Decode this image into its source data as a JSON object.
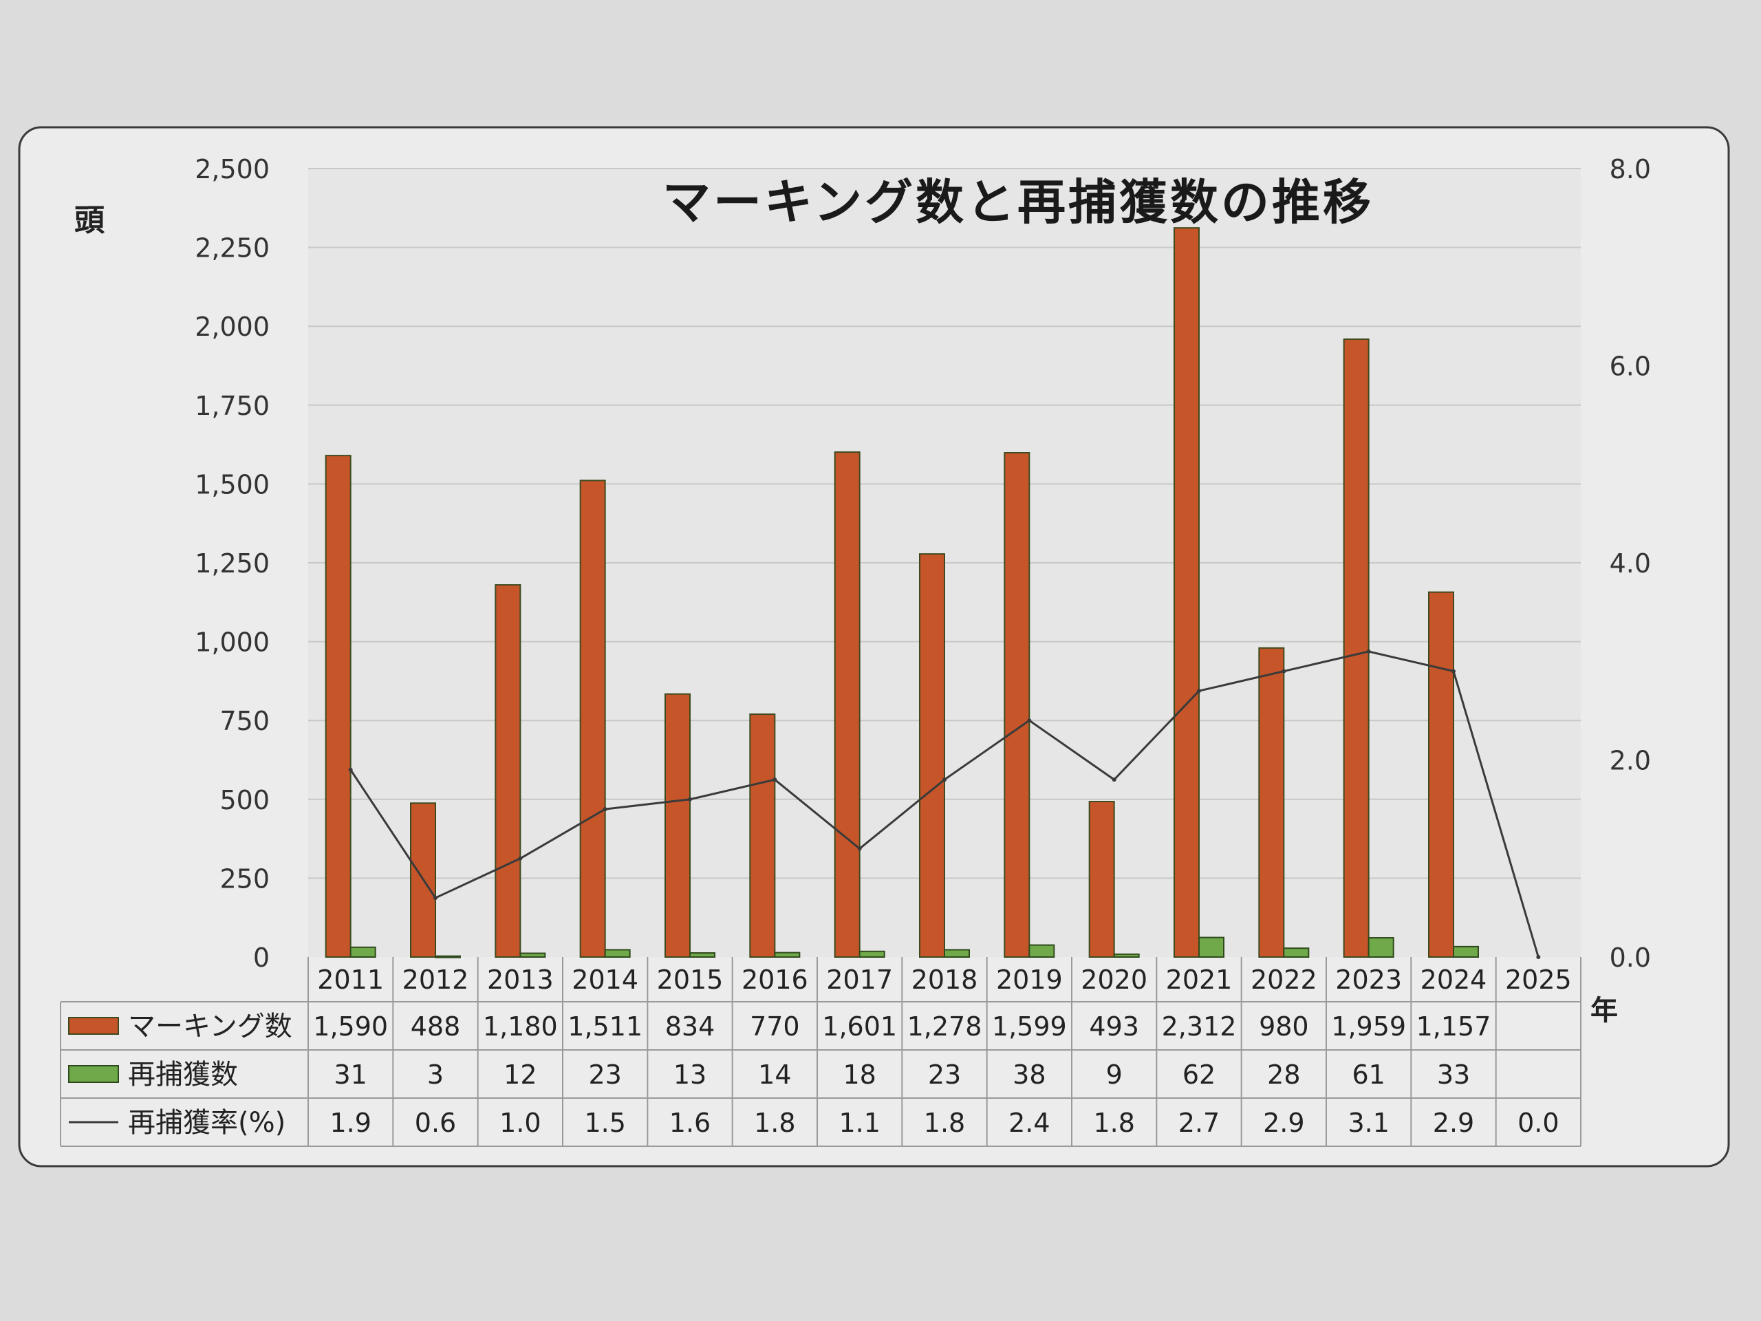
{
  "chart_data": {
    "type": "bar",
    "title": "マーキング数と再捕獲数の推移",
    "ylabel": "頭",
    "xlabel": "年",
    "categories": [
      "2011",
      "2012",
      "2013",
      "2014",
      "2015",
      "2016",
      "2017",
      "2018",
      "2019",
      "2020",
      "2021",
      "2022",
      "2023",
      "2024",
      "2025"
    ],
    "ylim": [
      0,
      2500
    ],
    "y2lim": [
      0,
      8.0
    ],
    "yticks": [
      "0",
      "250",
      "500",
      "750",
      "1,000",
      "1,250",
      "1,500",
      "1,750",
      "2,000",
      "2,250",
      "2,500"
    ],
    "y2ticks": [
      "0.0",
      "2.0",
      "4.0",
      "6.0",
      "8.0"
    ],
    "grid": true,
    "legend": "data-table",
    "colors": {
      "marking": "#c6562a",
      "recapture": "#6fa94a",
      "rate": "#3a3a3a",
      "plot_bg": "#e6e6e6",
      "panel_bg": "#ececec",
      "background": "#dcdcdc"
    },
    "series": [
      {
        "name": "マーキング数",
        "kind": "bar",
        "axis": "left",
        "values": [
          1590,
          488,
          1180,
          1511,
          834,
          770,
          1601,
          1278,
          1599,
          493,
          2312,
          980,
          1959,
          1157,
          null
        ],
        "labels": [
          "1,590",
          "488",
          "1,180",
          "1,511",
          "834",
          "770",
          "1,601",
          "1,278",
          "1,599",
          "493",
          "2,312",
          "980",
          "1,959",
          "1,157",
          ""
        ]
      },
      {
        "name": "再捕獲数",
        "kind": "bar",
        "axis": "left",
        "values": [
          31,
          3,
          12,
          23,
          13,
          14,
          18,
          23,
          38,
          9,
          62,
          28,
          61,
          33,
          null
        ],
        "labels": [
          "31",
          "3",
          "12",
          "23",
          "13",
          "14",
          "18",
          "23",
          "38",
          "9",
          "62",
          "28",
          "61",
          "33",
          ""
        ]
      },
      {
        "name": "再捕獲率(%)",
        "kind": "line",
        "axis": "right",
        "values": [
          1.9,
          0.6,
          1.0,
          1.5,
          1.6,
          1.8,
          1.1,
          1.8,
          2.4,
          1.8,
          2.7,
          2.9,
          3.1,
          2.9,
          0.0
        ],
        "labels": [
          "1.9",
          "0.6",
          "1.0",
          "1.5",
          "1.6",
          "1.8",
          "1.1",
          "1.8",
          "2.4",
          "1.8",
          "2.7",
          "2.9",
          "3.1",
          "2.9",
          "0.0"
        ]
      }
    ]
  }
}
